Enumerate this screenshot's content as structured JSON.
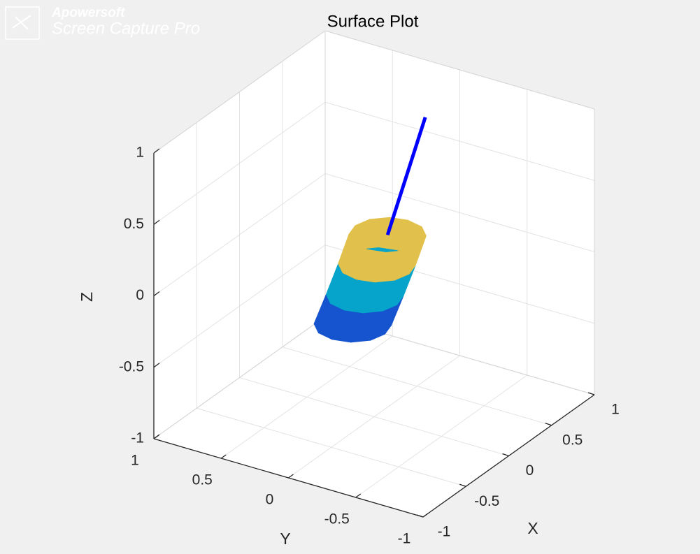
{
  "watermark": {
    "brand": "Apowersoft",
    "product": "Screen Capture Pro"
  },
  "chart_data": {
    "type": "surface3d",
    "title": "Surface Plot",
    "x_label": "X",
    "y_label": "Y",
    "z_label": "Z",
    "xlim": [
      -1,
      1
    ],
    "ylim": [
      -1,
      1
    ],
    "zlim": [
      -1,
      1
    ],
    "xticks": [
      -1,
      -0.5,
      0,
      0.5,
      1
    ],
    "yticks": [
      -1,
      -0.5,
      0,
      0.5,
      1
    ],
    "zticks": [
      -1,
      -0.5,
      0,
      0.5,
      1
    ],
    "grid": true,
    "surface": {
      "x": [
        [
          0.24,
          0.21,
          0.12,
          0,
          -0.12,
          -0.21,
          -0.24,
          -0.21,
          -0.12,
          0,
          0.12,
          0.21
        ],
        [
          0.24,
          0.21,
          0.12,
          0,
          -0.12,
          -0.21,
          -0.24,
          -0.21,
          -0.12,
          0,
          0.12,
          0.21
        ],
        [
          0.24,
          0.21,
          0.12,
          0,
          -0.12,
          -0.21,
          -0.24,
          -0.21,
          -0.12,
          0,
          0.12,
          0.21
        ],
        [
          0.24,
          0.21,
          0.12,
          0,
          -0.12,
          -0.21,
          -0.24,
          -0.21,
          -0.12,
          0,
          0.12,
          0.21
        ]
      ],
      "y": [
        [
          0.16,
          0.28,
          0.37,
          0.4,
          0.37,
          0.28,
          0.16,
          0.04,
          -0.05,
          -0.08,
          -0.05,
          0.04
        ],
        [
          0.07,
          0.19,
          0.28,
          0.31,
          0.28,
          0.19,
          0.07,
          -0.05,
          -0.14,
          -0.17,
          -0.14,
          -0.05
        ],
        [
          -0.02,
          0.1,
          0.19,
          0.22,
          0.19,
          0.1,
          -0.02,
          -0.14,
          -0.23,
          -0.26,
          -0.23,
          -0.14
        ],
        [
          -0.1,
          0.02,
          0.11,
          0.14,
          0.11,
          0.02,
          -0.1,
          -0.22,
          -0.31,
          -0.34,
          -0.31,
          -0.22
        ]
      ],
      "z": [
        [
          -0.4,
          -0.4,
          -0.4,
          -0.4,
          -0.4,
          -0.4,
          -0.4,
          -0.4,
          -0.4,
          -0.4,
          -0.4,
          -0.4
        ],
        [
          -0.17,
          -0.17,
          -0.17,
          -0.17,
          -0.17,
          -0.17,
          -0.17,
          -0.17,
          -0.17,
          -0.17,
          -0.17,
          -0.17
        ],
        [
          0.07,
          0.07,
          0.07,
          0.07,
          0.07,
          0.07,
          0.07,
          0.07,
          0.07,
          0.07,
          0.07,
          0.07
        ],
        [
          0.3,
          0.3,
          0.3,
          0.3,
          0.3,
          0.3,
          0.3,
          0.3,
          0.3,
          0.3,
          0.3,
          0.3
        ]
      ],
      "colormap": "parula"
    },
    "line": {
      "x": [
        0,
        0
      ],
      "y": [
        -0.1,
        -0.38
      ],
      "z": [
        0.3,
        1.2
      ],
      "color": "#0000ff"
    }
  }
}
